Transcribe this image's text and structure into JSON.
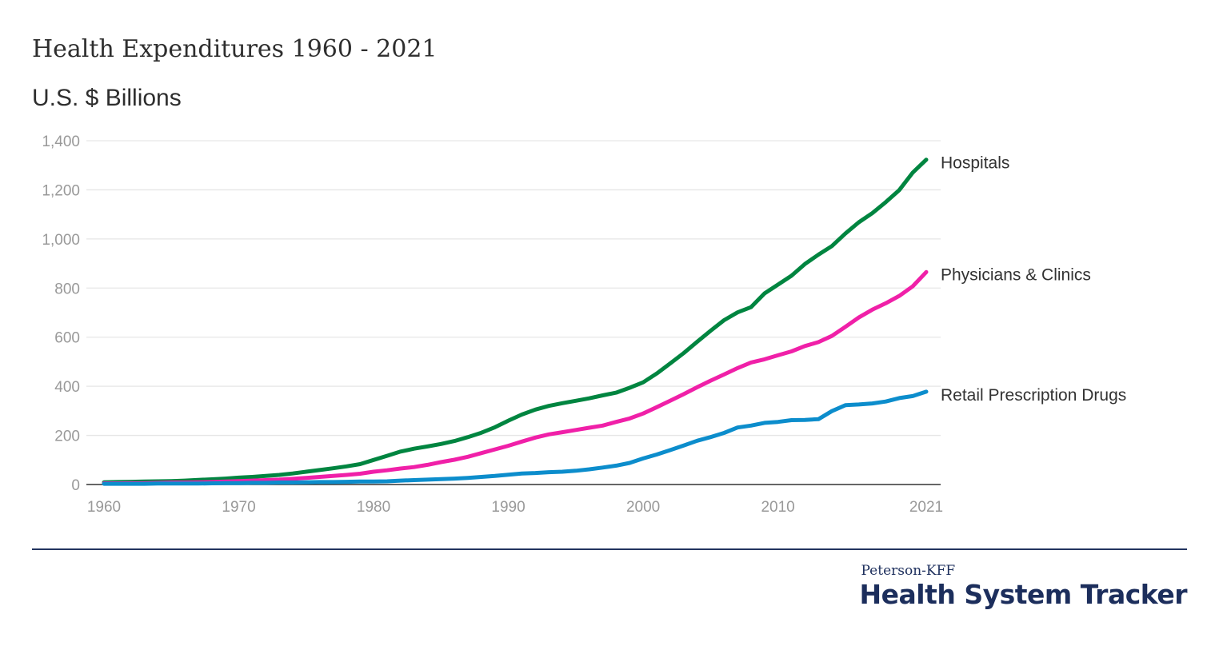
{
  "header": {
    "title": "Health Expenditures 1960 - 2021",
    "subtitle": "U.S. $ Billions"
  },
  "brand": {
    "top": "Peterson-KFF",
    "main": "Health System Tracker"
  },
  "chart_data": {
    "type": "line",
    "title": "Health Expenditures 1960 - 2021",
    "subtitle": "U.S. $ Billions",
    "xlabel": "",
    "ylabel": "",
    "xlim": [
      1960,
      2021
    ],
    "ylim": [
      0,
      1400
    ],
    "x_ticks": [
      "1960",
      "1970",
      "1980",
      "1990",
      "2000",
      "2010",
      "2021"
    ],
    "y_ticks": [
      "0",
      "200",
      "400",
      "600",
      "800",
      "1,000",
      "1,200",
      "1,400"
    ],
    "grid": "horizontal",
    "legend": "direct labels at line ends",
    "colors": {
      "Hospitals": "#008540",
      "Physicians & Clinics": "#f020a8",
      "Retail Prescription Drugs": "#0c8dcc",
      "grid": "#e6e6e6",
      "axis": "#333333",
      "tick_text": "#999999",
      "label_text": "#333333"
    },
    "x": [
      1960,
      1961,
      1962,
      1963,
      1964,
      1965,
      1966,
      1967,
      1968,
      1969,
      1970,
      1971,
      1972,
      1973,
      1974,
      1975,
      1976,
      1977,
      1978,
      1979,
      1980,
      1981,
      1982,
      1983,
      1984,
      1985,
      1986,
      1987,
      1988,
      1989,
      1990,
      1991,
      1992,
      1993,
      1994,
      1995,
      1996,
      1997,
      1998,
      1999,
      2000,
      2001,
      2002,
      2003,
      2004,
      2005,
      2006,
      2007,
      2008,
      2009,
      2010,
      2011,
      2012,
      2013,
      2014,
      2015,
      2016,
      2017,
      2018,
      2019,
      2020,
      2021
    ],
    "series": [
      {
        "name": "Hospitals",
        "values": [
          9,
          10,
          11,
          12,
          13,
          14,
          16,
          19,
          21,
          24,
          28,
          31,
          35,
          39,
          45,
          52,
          59,
          66,
          74,
          83,
          100,
          117,
          134,
          146,
          155,
          165,
          177,
          193,
          211,
          233,
          260,
          285,
          305,
          320,
          331,
          341,
          351,
          363,
          374,
          394,
          416,
          452,
          493,
          535,
          581,
          626,
          669,
          701,
          722,
          778,
          814,
          850,
          898,
          936,
          971,
          1022,
          1068,
          1105,
          1150,
          1199,
          1270,
          1323
        ]
      },
      {
        "name": "Physicians & Clinics",
        "values": [
          5,
          5,
          6,
          6,
          7,
          8,
          8,
          9,
          10,
          12,
          14,
          16,
          18,
          20,
          23,
          27,
          31,
          35,
          39,
          44,
          52,
          58,
          65,
          71,
          80,
          91,
          101,
          113,
          128,
          143,
          158,
          175,
          191,
          204,
          213,
          222,
          231,
          240,
          255,
          269,
          289,
          315,
          341,
          368,
          396,
          423,
          448,
          474,
          497,
          510,
          526,
          542,
          564,
          580,
          605,
          642,
          680,
          712,
          738,
          768,
          807,
          865
        ]
      },
      {
        "name": "Retail Prescription Drugs",
        "values": [
          3,
          3,
          3,
          3,
          4,
          4,
          4,
          4,
          5,
          6,
          6,
          7,
          7,
          8,
          8,
          9,
          10,
          10,
          11,
          12,
          12,
          13,
          16,
          18,
          20,
          22,
          24,
          27,
          31,
          35,
          40,
          45,
          47,
          50,
          52,
          56,
          62,
          69,
          77,
          88,
          106,
          122,
          140,
          159,
          178,
          193,
          210,
          232,
          240,
          251,
          255,
          262,
          263,
          266,
          299,
          323,
          326,
          330,
          338,
          352,
          360,
          378
        ]
      }
    ]
  }
}
